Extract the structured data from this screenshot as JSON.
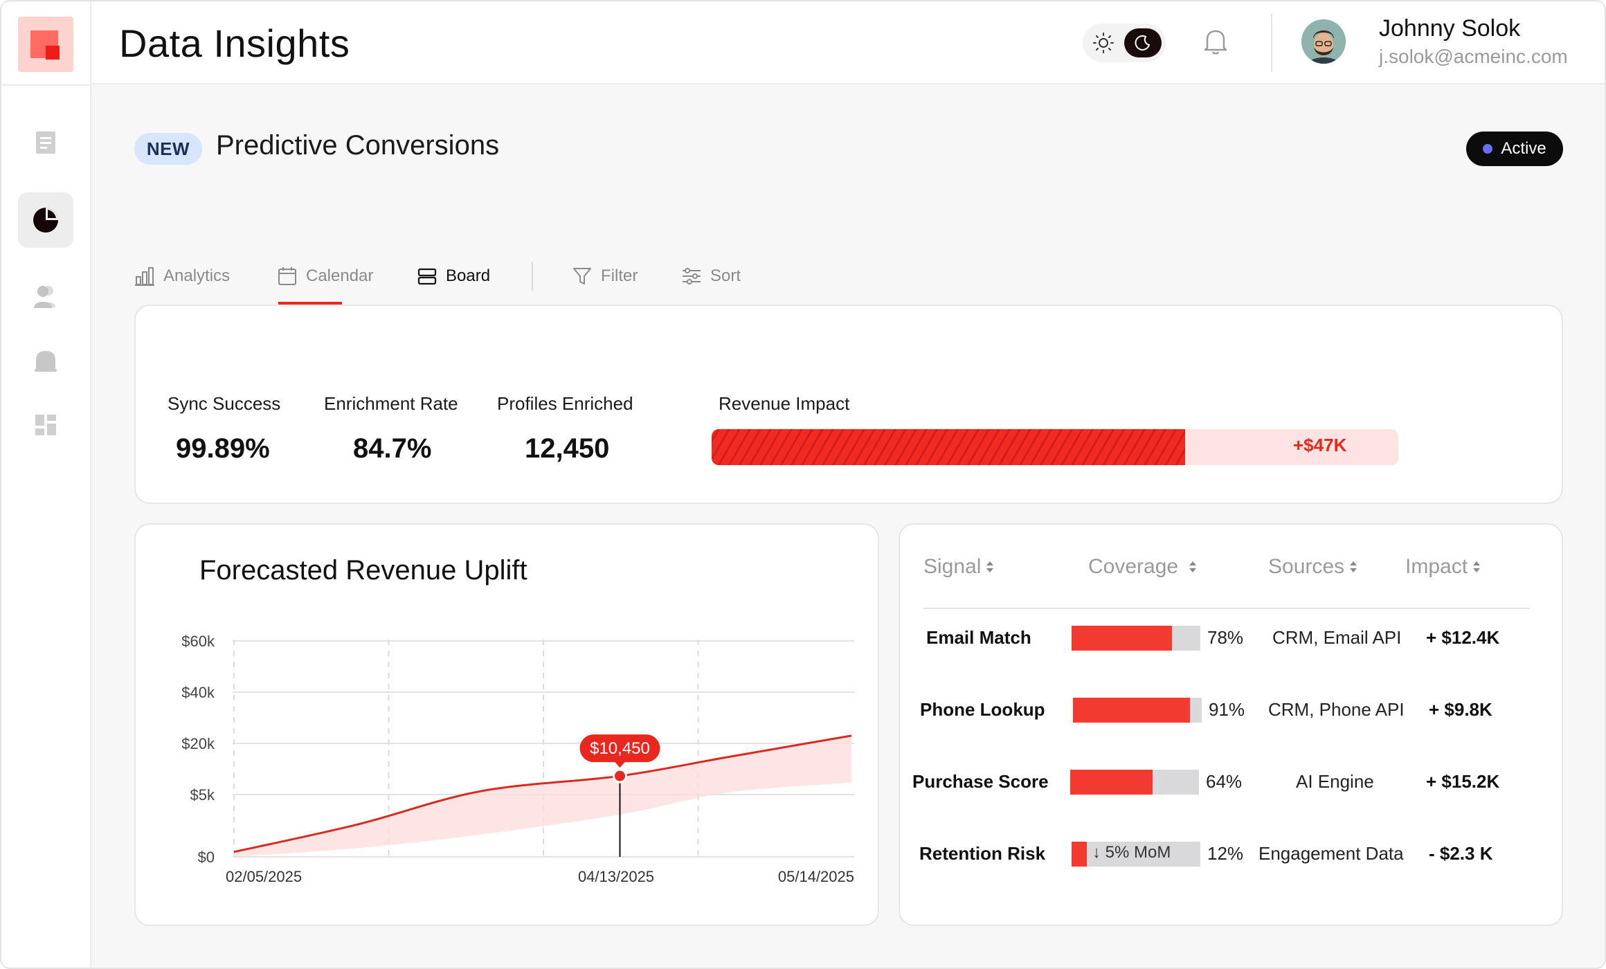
{
  "app": {
    "title": "Data Insights"
  },
  "user": {
    "name": "Johnny Solok",
    "email": "j.solok@acmeinc.com"
  },
  "sidebar": {
    "items": [
      {
        "icon": "document-icon",
        "active": false
      },
      {
        "icon": "pie-chart-icon",
        "active": true
      },
      {
        "icon": "users-icon",
        "active": false
      },
      {
        "icon": "bell-icon",
        "active": false
      },
      {
        "icon": "dashboard-icon",
        "active": false
      }
    ]
  },
  "page": {
    "badge": "NEW",
    "title": "Predictive Conversions",
    "status": "Active"
  },
  "tabs": [
    {
      "label": "Analytics",
      "icon": "bar-chart-icon"
    },
    {
      "label": "Calendar",
      "icon": "calendar-icon"
    },
    {
      "label": "Board",
      "icon": "board-icon",
      "active": true
    },
    {
      "label": "Filter",
      "icon": "filter-icon"
    },
    {
      "label": "Sort",
      "icon": "sliders-icon"
    }
  ],
  "metrics": {
    "sync_success": {
      "label": "Sync Success",
      "value": "99.89%"
    },
    "enrichment_rate": {
      "label": "Enrichment Rate",
      "value": "84.7%"
    },
    "profiles_enriched": {
      "label": "Profiles Enriched",
      "value": "12,450"
    },
    "revenue_impact": {
      "label": "Revenue Impact",
      "value": "+$47K",
      "fill_fraction": 0.69
    }
  },
  "colors": {
    "accent": "#e8281f",
    "accent_light": "#fde3e1",
    "status_dot": "#6b6cf7"
  },
  "chart_data": {
    "type": "area",
    "title": "Forecasted Revenue Uplift",
    "y_ticks": [
      "$0",
      "$5k",
      "$20k",
      "$40k",
      "$60k"
    ],
    "x_ticks": [
      "02/05/2025",
      "04/13/2025",
      "05/14/2025"
    ],
    "series": [
      {
        "values": [
          0.4,
          2.6,
          6.0,
          10.45,
          16.0,
          23.0
        ]
      }
    ],
    "x_progress": [
      0,
      0.2,
      0.4,
      0.625,
      0.8,
      1.0
    ],
    "band_lower": [
      0,
      0.7,
      1.8,
      3.4,
      5.6,
      8.5
    ],
    "highlight": {
      "label": "$10,450",
      "date": "04/13/2025"
    },
    "grid": true
  },
  "table": {
    "headers": [
      "Signal",
      "Coverage",
      "Sources",
      "Impact"
    ],
    "rows": [
      {
        "signal": "Email Match",
        "coverage": 0.78,
        "coverage_label": "78%",
        "sources": "CRM, Email API",
        "impact": "+ $12.4K"
      },
      {
        "signal": "Phone Lookup",
        "coverage": 0.91,
        "coverage_label": "91%",
        "sources": "CRM, Phone API",
        "impact": "+ $9.8K"
      },
      {
        "signal": "Purchase Score",
        "coverage": 0.64,
        "coverage_label": "64%",
        "sources": "AI Engine",
        "impact": "+ $15.2K"
      },
      {
        "signal": "Retention Risk",
        "coverage": 0.12,
        "coverage_label": "12%",
        "sources": "Engagement Data",
        "impact": "- $2.3 K",
        "trend": "↓ 5% MoM"
      }
    ]
  }
}
